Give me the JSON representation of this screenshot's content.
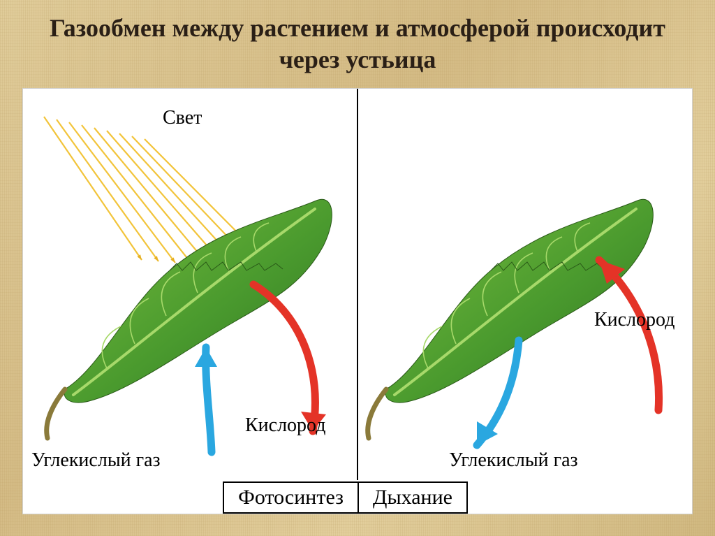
{
  "title": "Газообмен между растением и атмосферой происходит через устьица",
  "title_fontsize": 36,
  "panel": {
    "background": "#ffffff",
    "divider_color": "#000000"
  },
  "labels": {
    "light": "Свет",
    "co2": "Углекислый газ",
    "o2": "Кислород",
    "photosynthesis": "Фотосинтез",
    "respiration": "Дыхание",
    "fontsize": 28,
    "box_fontsize": 30
  },
  "colors": {
    "light_ray": "#f2c43a",
    "light_arrowhead": "#e6b023",
    "oxygen_arrow": "#e43327",
    "co2_arrow": "#2aa7e0",
    "leaf_light": "#7bbf3e",
    "leaf_mid": "#4a9a2e",
    "leaf_dark": "#2f7321",
    "leaf_vein": "#a7d96a",
    "stem": "#8a7a3a"
  },
  "light_rays": {
    "count": 9,
    "stroke_width": 2.2
  },
  "arrows": {
    "stroke_width": 11
  }
}
